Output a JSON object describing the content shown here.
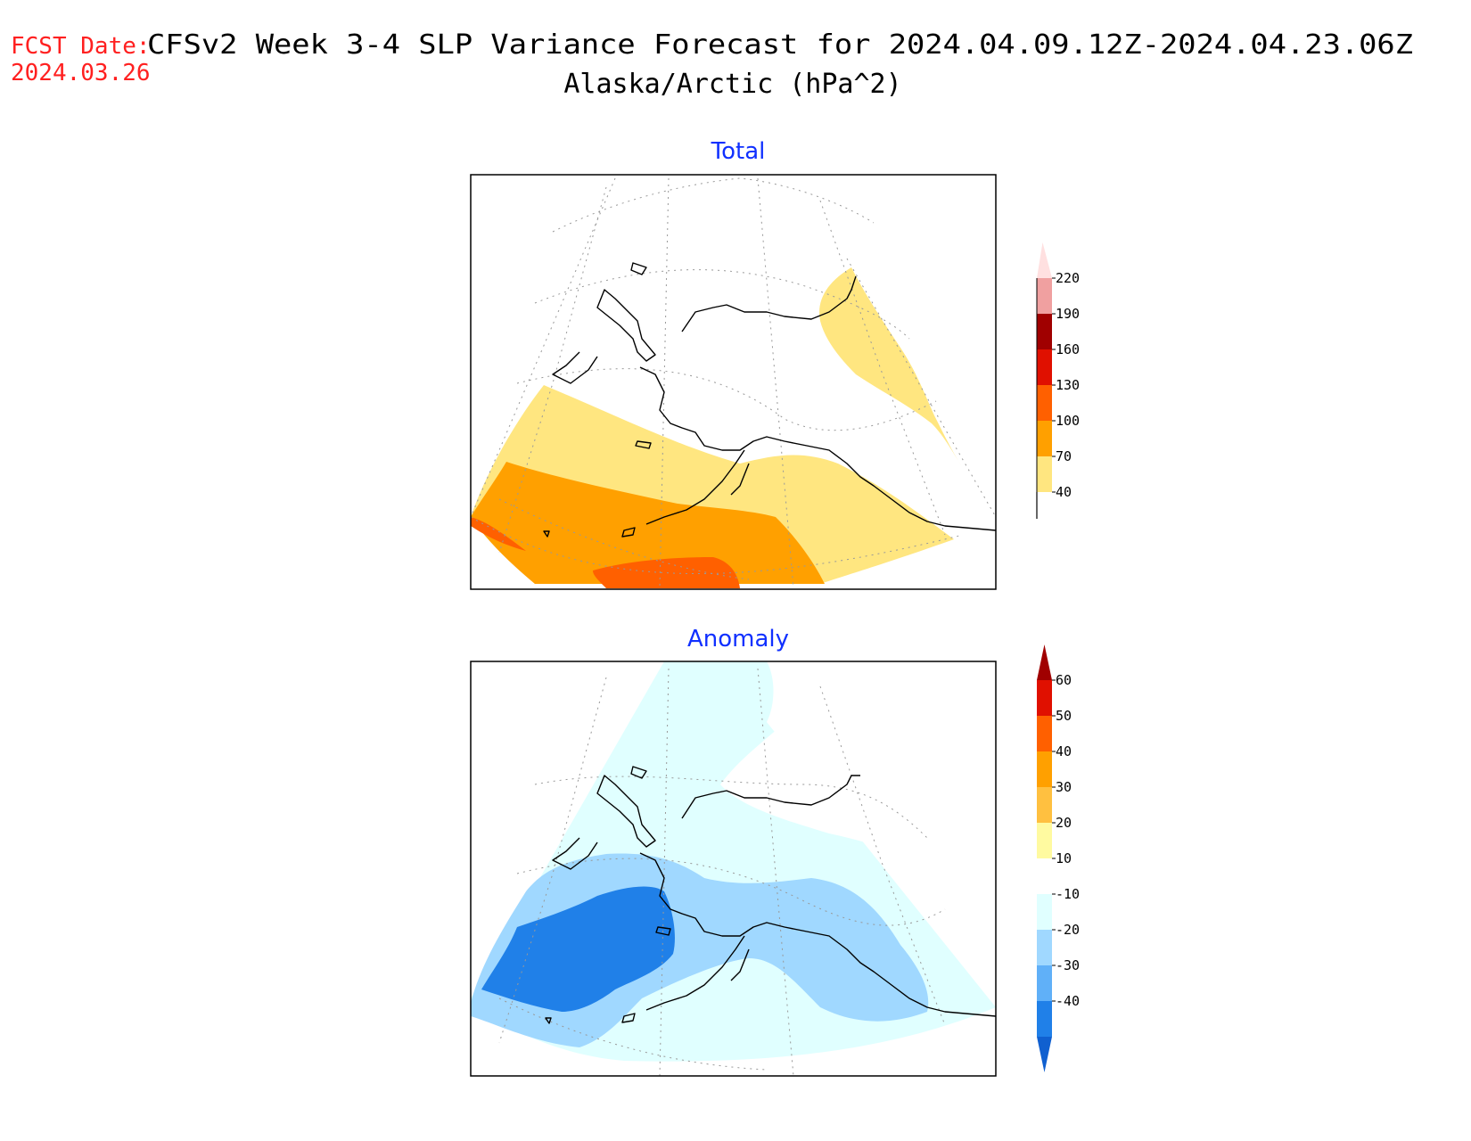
{
  "header": {
    "fcst_label": "FCST Date:",
    "fcst_date": "2024.03.26",
    "title": "CFSv2 Week 3-4 SLP Variance Forecast for 2024.04.09.12Z-2024.04.23.06Z",
    "subtitle": "Alaska/Arctic (hPa^2)"
  },
  "panels": [
    {
      "title": "Total",
      "colorbar": {
        "labels": [
          "40",
          "70",
          "100",
          "130",
          "160",
          "190",
          "220"
        ],
        "colors": [
          "#ffe680",
          "#ffa000",
          "#ff6000",
          "#e01000",
          "#a00000",
          "#f0a0a0",
          "#ffe0e0"
        ]
      }
    },
    {
      "title": "Anomaly",
      "colorbar": {
        "labels": [
          "60",
          "50",
          "40",
          "30",
          "20",
          "10",
          "-10",
          "-20",
          "-30",
          "-40"
        ],
        "colors": [
          "#a00000",
          "#e01000",
          "#ff6000",
          "#ffa000",
          "#ffc040",
          "#fffaa0",
          "#ffffff",
          "#e0ffff",
          "#a0d8ff",
          "#60b0f8",
          "#2080e8",
          "#1060d0"
        ]
      }
    }
  ],
  "colors": {
    "title_red": "#ff2020",
    "panel_title_blue": "#1030ff"
  }
}
